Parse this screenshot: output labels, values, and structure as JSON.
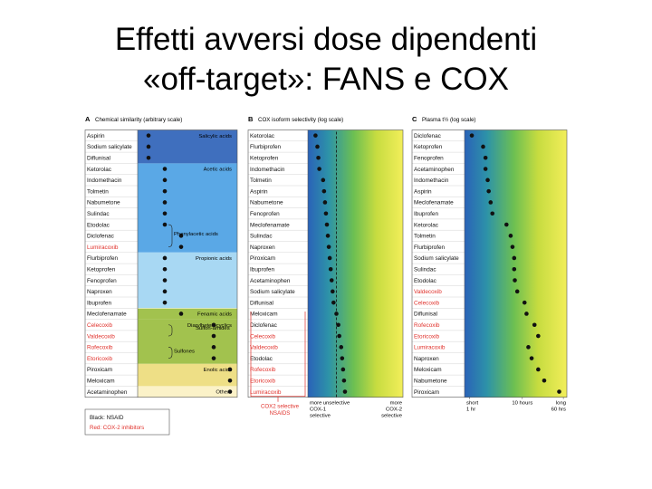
{
  "slide": {
    "title_line1": "Effetti avversi dose dipendenti",
    "title_line2": "«off-target»: FANS e COX"
  },
  "chart_data": [
    {
      "type": "table",
      "panel_letter": "A",
      "title": "Chemical similarity (arbitrary scale)",
      "legend": {
        "black": "Black: NSAID",
        "red": "Red: COX-2 inhibitors"
      },
      "groups": [
        {
          "label": "Salicylic acids",
          "color": "#3f6fbe",
          "start": 0,
          "end": 2
        },
        {
          "label": "Acetic acids",
          "color": "#5aa8e6",
          "start": 3,
          "end": 10
        },
        {
          "label": "Propionic acids",
          "color": "#a8d8f3",
          "start": 11,
          "end": 15
        },
        {
          "label": "Fenamic acids",
          "color": "#a2c24e",
          "start": 16,
          "end": 16
        },
        {
          "label": "Diarylheterocyclics",
          "color": "#a2c24e",
          "start": 17,
          "end": 20
        },
        {
          "label": "Enolic acids",
          "color": "#eedf86",
          "start": 21,
          "end": 22
        },
        {
          "label": "Others",
          "color": "#fbf2c8",
          "start": 23,
          "end": 23
        }
      ],
      "annotations": [
        "Phenylacetic acids",
        "Sulfon-amides",
        "Sulfones"
      ],
      "rows": [
        {
          "drug": "Aspirin",
          "red": false,
          "x": 1
        },
        {
          "drug": "Sodium salicylate",
          "red": false,
          "x": 1
        },
        {
          "drug": "Diflunisal",
          "red": false,
          "x": 1
        },
        {
          "drug": "Ketorolac",
          "red": false,
          "x": 2
        },
        {
          "drug": "Indomethacin",
          "red": false,
          "x": 2
        },
        {
          "drug": "Tolmetin",
          "red": false,
          "x": 2
        },
        {
          "drug": "Nabumetone",
          "red": false,
          "x": 2
        },
        {
          "drug": "Sulindac",
          "red": false,
          "x": 2
        },
        {
          "drug": "Etodolac",
          "red": false,
          "x": 2
        },
        {
          "drug": "Diclofenac",
          "red": false,
          "x": 3
        },
        {
          "drug": "Lumiracoxib",
          "red": true,
          "x": 3
        },
        {
          "drug": "Flurbiprofen",
          "red": false,
          "x": 2
        },
        {
          "drug": "Ketoprofen",
          "red": false,
          "x": 2
        },
        {
          "drug": "Fenoprofen",
          "red": false,
          "x": 2
        },
        {
          "drug": "Naproxen",
          "red": false,
          "x": 2
        },
        {
          "drug": "Ibuprofen",
          "red": false,
          "x": 2
        },
        {
          "drug": "Meclofenamate",
          "red": false,
          "x": 3
        },
        {
          "drug": "Celecoxib",
          "red": true,
          "x": 5
        },
        {
          "drug": "Valdecoxib",
          "red": true,
          "x": 5
        },
        {
          "drug": "Rofecoxib",
          "red": true,
          "x": 5
        },
        {
          "drug": "Etoricoxib",
          "red": true,
          "x": 5
        },
        {
          "drug": "Piroxicam",
          "red": false,
          "x": 6
        },
        {
          "drug": "Meloxicam",
          "red": false,
          "x": 6
        },
        {
          "drug": "Acetaminophen",
          "red": false,
          "x": 6
        }
      ]
    },
    {
      "type": "scatter",
      "panel_letter": "B",
      "title": "COX isoform selectivity (log scale)",
      "x_scale": "log",
      "x_ticks": [
        "more COX-1 selective",
        "unselective",
        "more COX-2 selective"
      ],
      "note": "COX2 selective NSAIDS",
      "points": [
        {
          "drug": "Ketorolac",
          "red": false,
          "x": 0.08
        },
        {
          "drug": "Flurbiprofen",
          "red": false,
          "x": 0.1
        },
        {
          "drug": "Ketoprofen",
          "red": false,
          "x": 0.11
        },
        {
          "drug": "Indomethacin",
          "red": false,
          "x": 0.12
        },
        {
          "drug": "Tolmetin",
          "red": false,
          "x": 0.16
        },
        {
          "drug": "Aspirin",
          "red": false,
          "x": 0.17
        },
        {
          "drug": "Nabumetone",
          "red": false,
          "x": 0.18
        },
        {
          "drug": "Fenoprofen",
          "red": false,
          "x": 0.19
        },
        {
          "drug": "Meclofenamate",
          "red": false,
          "x": 0.2
        },
        {
          "drug": "Sulindac",
          "red": false,
          "x": 0.21
        },
        {
          "drug": "Naproxen",
          "red": false,
          "x": 0.22
        },
        {
          "drug": "Piroxicam",
          "red": false,
          "x": 0.23
        },
        {
          "drug": "Ibuprofen",
          "red": false,
          "x": 0.24
        },
        {
          "drug": "Acetaminophen",
          "red": false,
          "x": 0.25
        },
        {
          "drug": "Sodium salicylate",
          "red": false,
          "x": 0.26
        },
        {
          "drug": "Diflunisal",
          "red": false,
          "x": 0.27
        },
        {
          "drug": "Meloxicam",
          "red": false,
          "x": 0.3
        },
        {
          "drug": "Diclofenac",
          "red": false,
          "x": 0.32
        },
        {
          "drug": "Celecoxib",
          "red": true,
          "x": 0.33
        },
        {
          "drug": "Valdecoxib",
          "red": true,
          "x": 0.35
        },
        {
          "drug": "Etodolac",
          "red": false,
          "x": 0.36
        },
        {
          "drug": "Rofecoxib",
          "red": true,
          "x": 0.37
        },
        {
          "drug": "Etoricoxib",
          "red": true,
          "x": 0.38
        },
        {
          "drug": "Lumiracoxib",
          "red": true,
          "x": 0.39
        }
      ]
    },
    {
      "type": "scatter",
      "panel_letter": "C",
      "title": "Plasma t½ (log scale)",
      "x_scale": "log",
      "x_ticks": [
        {
          "label": "short 1 hr",
          "hours": 1
        },
        {
          "label": "10 hours",
          "hours": 10
        },
        {
          "label": "long 60 hrs",
          "hours": 60
        }
      ],
      "points": [
        {
          "drug": "Diclofenac",
          "red": false,
          "hours": 1.1
        },
        {
          "drug": "Ketoprofen",
          "red": false,
          "hours": 1.8
        },
        {
          "drug": "Fenoprofen",
          "red": false,
          "hours": 2
        },
        {
          "drug": "Acetaminophen",
          "red": false,
          "hours": 2
        },
        {
          "drug": "Indomethacin",
          "red": false,
          "hours": 2.2
        },
        {
          "drug": "Aspirin",
          "red": false,
          "hours": 2.3
        },
        {
          "drug": "Meclofenamate",
          "red": false,
          "hours": 2.5
        },
        {
          "drug": "Ibuprofen",
          "red": false,
          "hours": 2.7
        },
        {
          "drug": "Ketorolac",
          "red": false,
          "hours": 5
        },
        {
          "drug": "Tolmetin",
          "red": false,
          "hours": 6
        },
        {
          "drug": "Flurbiprofen",
          "red": false,
          "hours": 6.5
        },
        {
          "drug": "Sodium salicylate",
          "red": false,
          "hours": 7
        },
        {
          "drug": "Sulindac",
          "red": false,
          "hours": 7
        },
        {
          "drug": "Etodolac",
          "red": false,
          "hours": 7.2
        },
        {
          "drug": "Valdecoxib",
          "red": true,
          "hours": 8
        },
        {
          "drug": "Celecoxib",
          "red": true,
          "hours": 11
        },
        {
          "drug": "Diflunisal",
          "red": false,
          "hours": 12
        },
        {
          "drug": "Rofecoxib",
          "red": true,
          "hours": 17
        },
        {
          "drug": "Etoricoxib",
          "red": true,
          "hours": 20
        },
        {
          "drug": "Lumiracoxib",
          "red": true,
          "hours": 13
        },
        {
          "drug": "Naproxen",
          "red": false,
          "hours": 15
        },
        {
          "drug": "Meloxicam",
          "red": false,
          "hours": 20
        },
        {
          "drug": "Nabumetone",
          "red": false,
          "hours": 26
        },
        {
          "drug": "Piroxicam",
          "red": false,
          "hours": 50
        }
      ]
    }
  ]
}
